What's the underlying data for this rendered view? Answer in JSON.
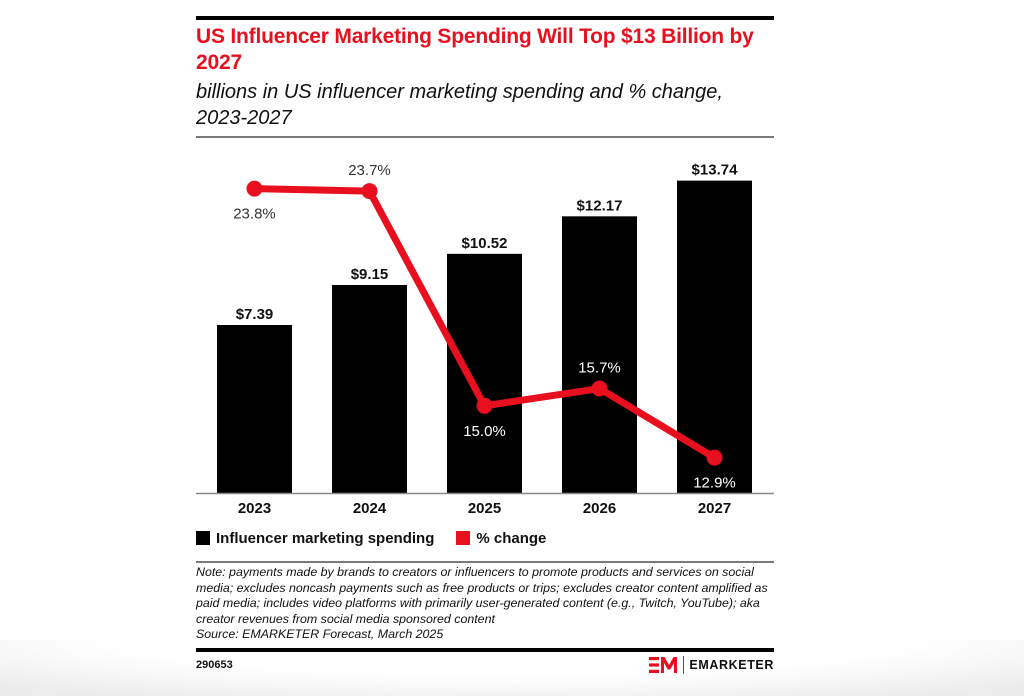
{
  "header": {
    "title": "US Influencer Marketing Spending Will Top $13 Billion by 2027",
    "subtitle": "billions in US influencer marketing spending and % change, 2023-2027"
  },
  "chart_data": {
    "type": "bar",
    "title": "US Influencer Marketing Spending Will Top $13 Billion by 2027",
    "subtitle": "billions in US influencer marketing spending and % change, 2023-2027",
    "xlabel": "",
    "ylabel": "",
    "categories": [
      "2023",
      "2024",
      "2025",
      "2026",
      "2027"
    ],
    "series": [
      {
        "name": "Influencer marketing spending",
        "type": "bar",
        "unit": "billions USD",
        "color": "#000000",
        "values": [
          7.39,
          9.15,
          10.52,
          12.17,
          13.74
        ],
        "labels": [
          "$7.39",
          "$9.15",
          "$10.52",
          "$12.17",
          "$13.74"
        ]
      },
      {
        "name": "% change",
        "type": "line",
        "axis": "secondary",
        "unit": "percent",
        "color": "#E8101E",
        "values": [
          23.8,
          23.7,
          15.0,
          15.7,
          12.9
        ],
        "labels": [
          "23.8%",
          "23.7%",
          "15.0%",
          "15.7%",
          "12.9%"
        ]
      }
    ],
    "ylim": [
      0,
      14
    ],
    "grid": false,
    "legend_position": "bottom-left"
  },
  "legend": {
    "items": [
      {
        "label": "Influencer marketing spending",
        "color": "#000000"
      },
      {
        "label": "% change",
        "color": "#E8101E"
      }
    ]
  },
  "footer": {
    "note": "Note: payments made by brands to creators or influencers to promote products and services on social media; excludes noncash payments such as free products or trips; excludes creator content amplified as paid media; includes video platforms with primarily user-generated content (e.g., Twitch, YouTube); aka creator revenues from social media sponsored content",
    "source": "Source: EMARKETER Forecast, March 2025",
    "chart_id": "290653",
    "brand": "EMARKETER",
    "brand_mark": "EM"
  },
  "colors": {
    "accent": "#E8101E",
    "bar": "#000000"
  }
}
